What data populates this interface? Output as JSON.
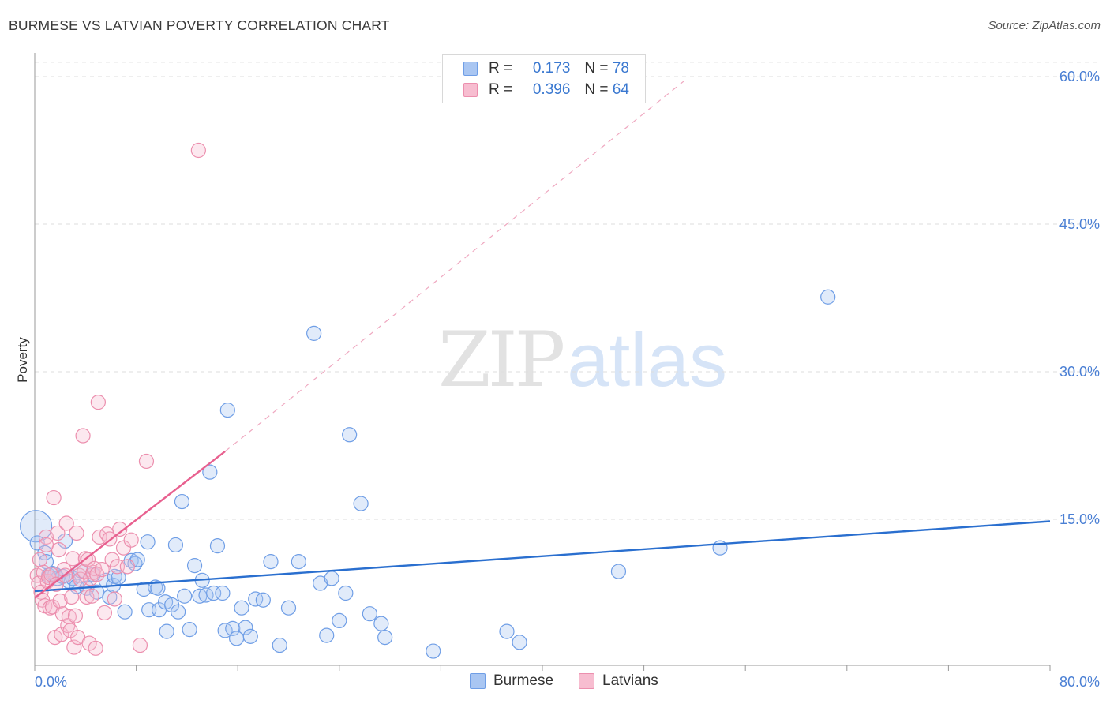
{
  "title": "BURMESE VS LATVIAN POVERTY CORRELATION CHART",
  "source": "Source: ZipAtlas.com",
  "watermark": {
    "zip": "ZIP",
    "atlas": "atlas"
  },
  "legend": {
    "r_label": "R =",
    "n_label": "N =",
    "series": [
      {
        "name": "Burmese",
        "r": "0.173",
        "n": "78",
        "color": "#a9c6f2",
        "edge": "#6f9ee6"
      },
      {
        "name": "Latvians",
        "r": "0.396",
        "n": "64",
        "color": "#f7bdd0",
        "edge": "#ec8fae"
      }
    ]
  },
  "chart_data": {
    "type": "scatter",
    "title": "BURMESE VS LATVIAN POVERTY CORRELATION CHART",
    "xlabel": "",
    "ylabel": "Poverty",
    "xlim": [
      0,
      80
    ],
    "ylim": [
      0,
      62
    ],
    "x_tick_labels": [
      "0.0%",
      "80.0%"
    ],
    "y_ticks": [
      15,
      30,
      45,
      60
    ],
    "y_tick_labels": [
      "15.0%",
      "30.0%",
      "45.0%",
      "60.0%"
    ],
    "grid": true,
    "series": [
      {
        "name": "Burmese",
        "color": "#6f9ee6",
        "trend": {
          "x0": 0,
          "y0": 7.7,
          "x1": 80,
          "y1": 14.8,
          "color": "#2a6fcf"
        },
        "points": [
          [
            0.1,
            14.3
          ],
          [
            0.2,
            12.6
          ],
          [
            0.8,
            11.6
          ],
          [
            0.9,
            10.7
          ],
          [
            1.1,
            9.3
          ],
          [
            1.4,
            9.5
          ],
          [
            1.8,
            9.0
          ],
          [
            2.2,
            9.2
          ],
          [
            2.4,
            12.8
          ],
          [
            2.7,
            8.7
          ],
          [
            3.0,
            9.0
          ],
          [
            3.3,
            8.2
          ],
          [
            3.6,
            9.8
          ],
          [
            4.1,
            8.0
          ],
          [
            4.6,
            9.4
          ],
          [
            4.9,
            7.6
          ],
          [
            5.6,
            8.8
          ],
          [
            5.9,
            7.1
          ],
          [
            6.2,
            8.3
          ],
          [
            6.3,
            9.2
          ],
          [
            6.6,
            9.1
          ],
          [
            7.1,
            5.6
          ],
          [
            7.6,
            10.8
          ],
          [
            7.9,
            10.5
          ],
          [
            8.1,
            10.9
          ],
          [
            8.6,
            7.9
          ],
          [
            8.9,
            12.7
          ],
          [
            9.0,
            5.8
          ],
          [
            9.5,
            8.1
          ],
          [
            9.7,
            8.0
          ],
          [
            9.8,
            5.8
          ],
          [
            10.3,
            6.6
          ],
          [
            10.4,
            3.6
          ],
          [
            10.8,
            6.3
          ],
          [
            11.1,
            12.4
          ],
          [
            11.3,
            5.6
          ],
          [
            11.6,
            16.8
          ],
          [
            11.8,
            7.2
          ],
          [
            12.2,
            3.8
          ],
          [
            12.6,
            10.3
          ],
          [
            13.0,
            7.2
          ],
          [
            13.2,
            8.8
          ],
          [
            13.5,
            7.3
          ],
          [
            13.8,
            19.8
          ],
          [
            14.1,
            7.5
          ],
          [
            14.4,
            12.3
          ],
          [
            14.8,
            7.5
          ],
          [
            15.0,
            3.7
          ],
          [
            15.2,
            26.1
          ],
          [
            15.6,
            3.9
          ],
          [
            15.9,
            2.9
          ],
          [
            16.3,
            6.0
          ],
          [
            16.6,
            4.0
          ],
          [
            17.0,
            3.1
          ],
          [
            17.4,
            6.9
          ],
          [
            18.0,
            6.8
          ],
          [
            18.6,
            10.7
          ],
          [
            19.3,
            2.2
          ],
          [
            20.0,
            6.0
          ],
          [
            20.8,
            10.7
          ],
          [
            22.0,
            33.9
          ],
          [
            22.5,
            8.5
          ],
          [
            23.0,
            3.2
          ],
          [
            23.4,
            9.0
          ],
          [
            24.0,
            4.7
          ],
          [
            24.5,
            7.5
          ],
          [
            24.8,
            23.6
          ],
          [
            25.7,
            16.6
          ],
          [
            26.4,
            5.4
          ],
          [
            27.3,
            4.4
          ],
          [
            27.6,
            3.0
          ],
          [
            31.4,
            1.6
          ],
          [
            37.2,
            3.6
          ],
          [
            38.2,
            2.5
          ],
          [
            46.0,
            9.7
          ],
          [
            54.0,
            12.1
          ],
          [
            62.5,
            37.6
          ],
          [
            1.6,
            9.4
          ]
        ]
      },
      {
        "name": "Latvians",
        "color": "#ec8fae",
        "trend": {
          "x0": 0,
          "y0": 7.0,
          "x1": 15,
          "y1": 21.9,
          "color": "#e8608f"
        },
        "trend_extension": {
          "x0": 15,
          "y0": 21.9,
          "x1": 51.5,
          "y1": 59.9
        },
        "points": [
          [
            0.2,
            9.3
          ],
          [
            0.3,
            8.5
          ],
          [
            0.4,
            10.9
          ],
          [
            0.5,
            7.6
          ],
          [
            0.6,
            6.8
          ],
          [
            0.7,
            9.6
          ],
          [
            0.8,
            6.2
          ],
          [
            0.9,
            13.2
          ],
          [
            1.0,
            8.7
          ],
          [
            1.1,
            9.1
          ],
          [
            1.2,
            6.0
          ],
          [
            1.3,
            9.4
          ],
          [
            1.4,
            6.1
          ],
          [
            1.5,
            17.2
          ],
          [
            1.6,
            3.0
          ],
          [
            1.7,
            8.4
          ],
          [
            1.8,
            13.6
          ],
          [
            1.9,
            11.9
          ],
          [
            2.0,
            6.7
          ],
          [
            2.1,
            3.3
          ],
          [
            2.2,
            5.4
          ],
          [
            2.3,
            9.9
          ],
          [
            2.4,
            9.3
          ],
          [
            2.5,
            14.6
          ],
          [
            2.6,
            4.2
          ],
          [
            2.7,
            5.1
          ],
          [
            2.8,
            3.7
          ],
          [
            2.9,
            7.1
          ],
          [
            3.0,
            11.0
          ],
          [
            3.1,
            2.0
          ],
          [
            3.2,
            5.2
          ],
          [
            3.3,
            13.6
          ],
          [
            3.4,
            3.0
          ],
          [
            3.5,
            9.3
          ],
          [
            3.6,
            8.9
          ],
          [
            3.8,
            23.5
          ],
          [
            3.9,
            9.7
          ],
          [
            4.0,
            11.0
          ],
          [
            4.1,
            7.1
          ],
          [
            4.2,
            10.9
          ],
          [
            4.3,
            2.4
          ],
          [
            4.4,
            9.0
          ],
          [
            4.5,
            7.2
          ],
          [
            4.6,
            9.6
          ],
          [
            4.7,
            10.0
          ],
          [
            4.8,
            1.9
          ],
          [
            4.9,
            9.4
          ],
          [
            5.0,
            26.9
          ],
          [
            5.1,
            13.2
          ],
          [
            5.3,
            9.9
          ],
          [
            5.5,
            5.5
          ],
          [
            5.7,
            13.5
          ],
          [
            5.9,
            13.0
          ],
          [
            6.1,
            10.9
          ],
          [
            6.3,
            6.9
          ],
          [
            6.5,
            10.2
          ],
          [
            6.7,
            14.0
          ],
          [
            7.0,
            12.1
          ],
          [
            7.3,
            10.2
          ],
          [
            7.6,
            12.9
          ],
          [
            8.3,
            2.2
          ],
          [
            8.8,
            20.9
          ],
          [
            12.9,
            52.5
          ],
          [
            0.9,
            12.4
          ]
        ]
      }
    ]
  }
}
